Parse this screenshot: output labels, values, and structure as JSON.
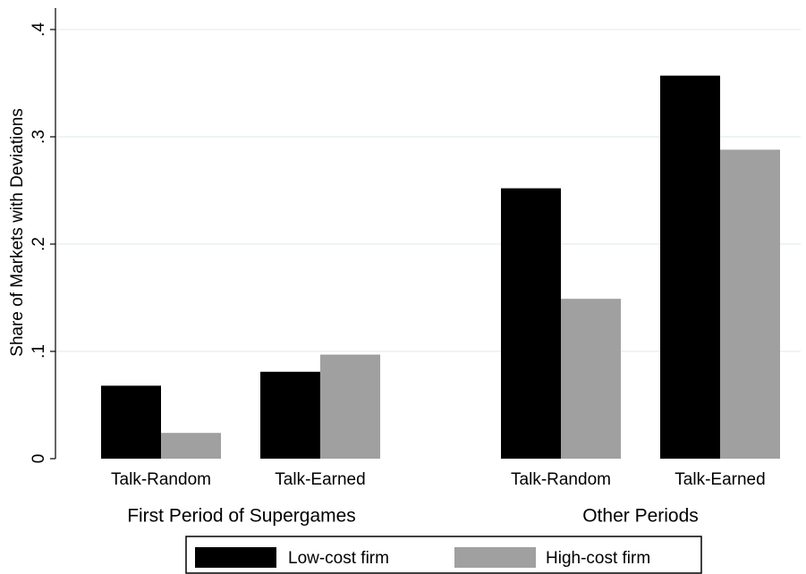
{
  "chart_data": {
    "type": "bar",
    "y_label": "Share of Markets with Deviations",
    "groups": [
      {
        "name": "First Period of Supergames",
        "categories": [
          "Talk-Random",
          "Talk-Earned"
        ]
      },
      {
        "name": "Other Periods",
        "categories": [
          "Talk-Random",
          "Talk-Earned"
        ]
      }
    ],
    "series": [
      {
        "name": "Low-cost firm",
        "color": "#000000",
        "values": [
          0.068,
          0.081,
          0.252,
          0.357
        ]
      },
      {
        "name": "High-cost firm",
        "color": "#a0a0a0",
        "values": [
          0.024,
          0.097,
          0.149,
          0.288
        ]
      }
    ],
    "ylim": [
      0,
      0.42
    ],
    "yticks": [
      0,
      {
        "value": 0.1,
        "label": ".1"
      },
      {
        "value": 0.2,
        "label": ".2"
      },
      {
        "value": 0.3,
        "label": ".3"
      },
      {
        "value": 0.4,
        "label": ".4"
      }
    ],
    "grid": true
  }
}
